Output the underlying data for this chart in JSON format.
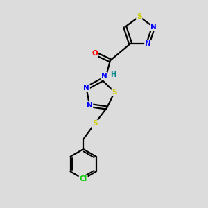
{
  "background_color": "#dcdcdc",
  "bond_color": "#000000",
  "atom_colors": {
    "S": "#cccc00",
    "N": "#0000ff",
    "O": "#ff0000",
    "Cl": "#00cc00",
    "C": "#000000",
    "H": "#008888"
  },
  "figsize": [
    3.0,
    3.0
  ],
  "dpi": 100
}
